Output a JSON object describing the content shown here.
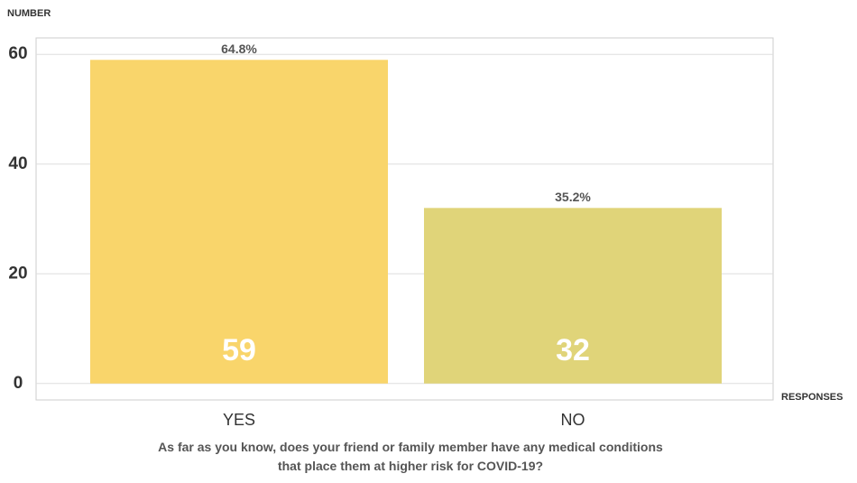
{
  "chart_data": {
    "type": "bar",
    "title": "As far as you know, does your friend or family member have any medical conditions that place them at higher risk for COVID-19?",
    "y_axis_label": "NUMBER",
    "x_axis_label": "RESPONSES",
    "categories": [
      "YES",
      "NO"
    ],
    "values": [
      59,
      32
    ],
    "colors": [
      "#f9d56b",
      "#e0d479"
    ],
    "annotations": [
      "64.8%",
      "35.2%"
    ],
    "ylim": [
      -3,
      63
    ],
    "yticks": [
      0,
      20,
      40,
      60
    ],
    "grid": true
  }
}
